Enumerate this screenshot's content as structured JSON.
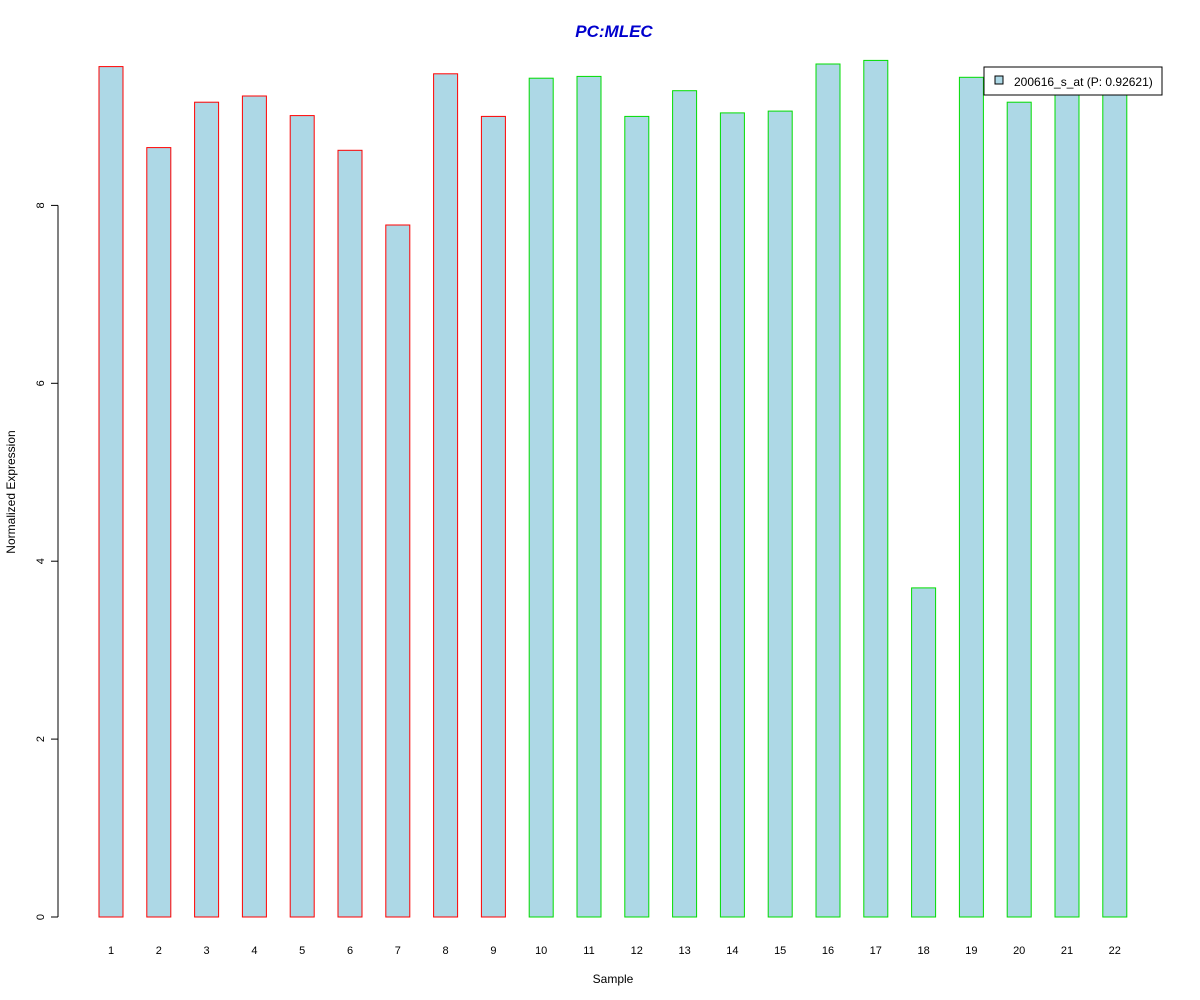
{
  "chart_data": {
    "type": "bar",
    "title": "PC:MLEC",
    "title_color": "#0000CD",
    "xlabel": "Sample",
    "ylabel": "Normalized Expression",
    "ylim": [
      0,
      9.65
    ],
    "yticks": [
      0,
      2,
      4,
      6,
      8
    ],
    "grid": false,
    "bar_fill": "#ADD8E6",
    "group_colors": {
      "group1": "#FF0000",
      "group2": "#00DD00"
    },
    "categories": [
      "1",
      "2",
      "3",
      "4",
      "5",
      "6",
      "7",
      "8",
      "9",
      "10",
      "11",
      "12",
      "13",
      "14",
      "15",
      "16",
      "17",
      "18",
      "19",
      "20",
      "21",
      "22"
    ],
    "values": [
      9.56,
      8.65,
      9.16,
      9.23,
      9.01,
      8.62,
      7.78,
      9.48,
      9.0,
      9.43,
      9.45,
      9.0,
      9.29,
      9.04,
      9.06,
      9.59,
      9.63,
      3.7,
      9.44,
      9.16,
      9.38,
      9.35
    ],
    "groups": [
      "group1",
      "group1",
      "group1",
      "group1",
      "group1",
      "group1",
      "group1",
      "group1",
      "group1",
      "group2",
      "group2",
      "group2",
      "group2",
      "group2",
      "group2",
      "group2",
      "group2",
      "group2",
      "group2",
      "group2",
      "group2",
      "group2"
    ],
    "legend": {
      "placement": "top-right",
      "label": "200616_s_at (P: 0.92621)"
    }
  }
}
